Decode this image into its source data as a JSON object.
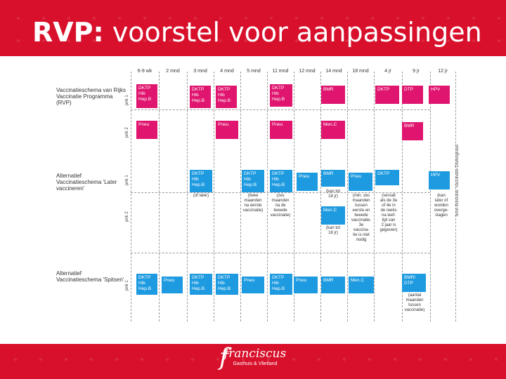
{
  "title": {
    "bold": "RVP:",
    "rest": "voorstel voor aanpassingen"
  },
  "columns": [
    "6-9 wk",
    "2 mnd",
    "3 mnd",
    "4 mnd",
    "5 mnd",
    "11 mnd",
    "12 mnd",
    "14 mnd",
    "18 mnd",
    "4 jr",
    "9 jr",
    "12 jr"
  ],
  "rows": [
    {
      "label": "Vaccinatieschema van Rijks Vaccinatie Programma (RVP)",
      "prik1": "prik 1",
      "prik2": "prik 2"
    },
    {
      "label": "Alternatief Vaccinatieschema 'Later vaccineren'",
      "prik1": "prik 1",
      "prik2": "prik 2"
    },
    {
      "label": "Alternatief Vaccinatieschema 'Spitsen'",
      "prik1": "prik 1"
    }
  ],
  "boxes": [
    {
      "text": "DKTP\nHib\nHep.B",
      "color": "pink"
    },
    {
      "text": "Pneu",
      "color": "pink"
    },
    {
      "text": "DKTP\nHib\nHep.B",
      "color": "pink"
    },
    {
      "text": "DKTP\nHib\nHep.B",
      "color": "pink"
    },
    {
      "text": "Pneu",
      "color": "pink"
    },
    {
      "text": "DKTP\nHib\nHep.B",
      "color": "pink"
    },
    {
      "text": "Pneu",
      "color": "pink"
    },
    {
      "text": "BMR",
      "color": "pink"
    },
    {
      "text": "Men.C",
      "color": "pink"
    },
    {
      "text": "DKTP",
      "color": "pink"
    },
    {
      "text": "DTP",
      "color": "pink"
    },
    {
      "text": "BMR",
      "color": "pink"
    },
    {
      "text": "HPV",
      "color": "pink"
    },
    {
      "text": "DKTP\nHib\nHep.B",
      "color": "blue"
    },
    {
      "text": "DKTP\nHib\nHep.B",
      "color": "blue"
    },
    {
      "text": "DKTP\nHib\nHep.B",
      "color": "blue"
    },
    {
      "text": "Pneu",
      "color": "blue"
    },
    {
      "text": "BMR",
      "color": "blue"
    },
    {
      "text": "Pneu",
      "color": "blue"
    },
    {
      "text": "DKTP",
      "color": "blue"
    },
    {
      "text": "Men.C",
      "color": "blue"
    },
    {
      "text": "HPV",
      "color": "blue"
    },
    {
      "text": "DKTP\nHib\nHep.B",
      "color": "blue"
    },
    {
      "text": "Pneu",
      "color": "blue"
    },
    {
      "text": "DKTP\nHib\nHep.B",
      "color": "blue"
    },
    {
      "text": "DKTP\nHib\nHep.B",
      "color": "blue"
    },
    {
      "text": "Pneu",
      "color": "blue"
    },
    {
      "text": "DKTP\nHib\nHep.B",
      "color": "blue"
    },
    {
      "text": "Pneu",
      "color": "blue"
    },
    {
      "text": "BMR",
      "color": "blue"
    },
    {
      "text": "Men.C",
      "color": "blue"
    },
    {
      "text": "BMR/\nDTP",
      "color": "blue"
    }
  ],
  "notes": [
    "(of later)",
    "(twee\nmaanden\nna eerste\nvaccinatie)",
    "(zes\nmaanden\nna de\ntweede\nvaccinatie)",
    "(kan tot\n18 jr)",
    "(min. zes\nmaanden\ntussen\neerste en\ntweede\nvaccinatie.\n3e\nvaccina-\ntie is niet\nnodig",
    "(vervalt\nals de 3e\nof 4e in\nde reeks\nna leef-\ntijd van\n2 jaar is\ngegeven)",
    "(kan tot\n18 jr)",
    "(kan\nlater of\nworden\noverge-\nslagen",
    "(aantal\nmaanden\ntussen\nvaccinatie)"
  ],
  "source": "bron illustratie: Vaccinatie Dialoograad",
  "logo": {
    "main": "franciscus",
    "sub": "Gasthuis & Vlietland",
    "mark": "f"
  },
  "colors": {
    "header": "#d8102b",
    "pink": "#e0156f",
    "blue": "#1e9be0"
  }
}
